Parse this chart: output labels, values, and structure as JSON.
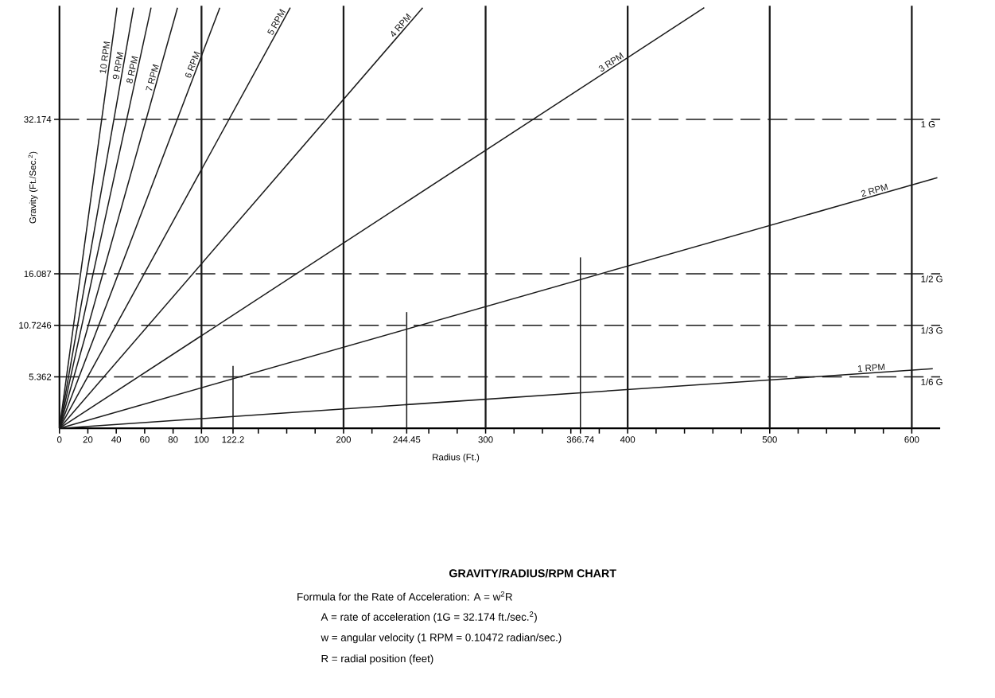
{
  "chart_data": {
    "type": "line",
    "title": "GRAVITY/RADIUS/RPM CHART",
    "xlabel": "Radius (Ft.)",
    "ylabel": "Gravity (Ft./Sec.$^{2}$)",
    "xlim": [
      0,
      620
    ],
    "ylim": [
      0,
      44
    ],
    "xticks": [
      0,
      20,
      40,
      60,
      80,
      100,
      122.2,
      200,
      244.45,
      300,
      366.74,
      400,
      500,
      600,
      {
        "value": 140,
        "label": null
      },
      {
        "value": 160,
        "label": null
      },
      {
        "value": 180,
        "label": null
      },
      {
        "value": 220,
        "label": null
      },
      {
        "value": 260,
        "label": null
      },
      {
        "value": 280,
        "label": null
      },
      {
        "value": 320,
        "label": null
      },
      {
        "value": 340,
        "label": null
      },
      {
        "value": 360,
        "label": null
      },
      {
        "value": 380,
        "label": null
      },
      {
        "value": 420,
        "label": null
      },
      {
        "value": 440,
        "label": null
      },
      {
        "value": 460,
        "label": null
      },
      {
        "value": 480,
        "label": null
      },
      {
        "value": 520,
        "label": null
      },
      {
        "value": 540,
        "label": null
      },
      {
        "value": 560,
        "label": null
      },
      {
        "value": 580,
        "label": null
      }
    ],
    "yticks": [
      5.362,
      10.7246,
      16.087,
      32.174
    ],
    "series": [
      {
        "name": "10 RPM",
        "color": "#1a1a1a",
        "x": [
          0,
          40.5
        ],
        "values": [
          0,
          43.8
        ]
      },
      {
        "name": "9 RPM",
        "color": "#1a1a1a",
        "x": [
          0,
          52.2
        ],
        "values": [
          0,
          43.8
        ]
      },
      {
        "name": "8 RPM",
        "color": "#1a1a1a",
        "x": [
          0,
          64.5
        ],
        "values": [
          0,
          43.8
        ]
      },
      {
        "name": "7 RPM",
        "color": "#1a1a1a",
        "x": [
          0,
          83.1
        ],
        "values": [
          0,
          43.8
        ]
      },
      {
        "name": "6 RPM",
        "color": "#1a1a1a",
        "x": [
          0,
          112.9
        ],
        "values": [
          0,
          43.8
        ]
      },
      {
        "name": "5 RPM",
        "color": "#1a1a1a",
        "x": [
          0,
          162.5
        ],
        "values": [
          0,
          43.8
        ]
      },
      {
        "name": "4 RPM",
        "color": "#1a1a1a",
        "x": [
          0,
          255.7
        ],
        "values": [
          0,
          43.8
        ]
      },
      {
        "name": "3 RPM",
        "color": "#1a1a1a",
        "x": [
          0,
          453.9
        ],
        "values": [
          0,
          43.8
        ]
      },
      {
        "name": "2 RPM",
        "color": "#1a1a1a",
        "x": [
          0,
          618
        ],
        "values": [
          0,
          26.1
        ]
      },
      {
        "name": "1 RPM",
        "color": "#1a1a1a",
        "x": [
          0,
          614.8
        ],
        "values": [
          0,
          6.2
        ]
      },
      {
        "color": "#1a1a1a",
        "x": [
          122.2,
          122.2
        ],
        "values": [
          0,
          6.5
        ]
      },
      {
        "color": "#1a1a1a",
        "x": [
          244.45,
          244.45
        ],
        "values": [
          0,
          12.1
        ]
      },
      {
        "color": "#1a1a1a",
        "x": [
          366.74,
          366.74
        ],
        "values": [
          0,
          17.8
        ]
      }
    ],
    "ref_lines": [
      {
        "axis": "y",
        "value": 32.174,
        "label": "1 G",
        "line_style": "dashed",
        "color": "#1a1a1a"
      },
      {
        "axis": "y",
        "value": 16.087,
        "label": "1/2 G",
        "line_style": "dashed",
        "color": "#1a1a1a"
      },
      {
        "axis": "y",
        "value": 10.7246,
        "label": "1/3 G",
        "line_style": "dashed",
        "color": "#1a1a1a"
      },
      {
        "axis": "y",
        "value": 5.362,
        "label": "1/6 G",
        "line_style": "dashed",
        "color": "#1a1a1a"
      },
      {
        "axis": "x",
        "value": 100,
        "color": "#1a1a1a"
      },
      {
        "axis": "x",
        "value": 200,
        "color": "#1a1a1a"
      },
      {
        "axis": "x",
        "value": 300,
        "color": "#1a1a1a"
      },
      {
        "axis": "x",
        "value": 400,
        "color": "#1a1a1a"
      },
      {
        "axis": "x",
        "value": 500,
        "color": "#1a1a1a"
      },
      {
        "axis": "x",
        "value": 600,
        "color": "#1a1a1a"
      }
    ],
    "annotations": [
      "Formula for the Rate of Acceleration:   A = w$^{2}$R",
      "A = rate of acceleration (1G = 32.174 ft./sec.$^{2}$)",
      "w = angular velocity (1 RPM = 0.10472 radian/sec.)",
      "R = radial position (feet)"
    ]
  }
}
